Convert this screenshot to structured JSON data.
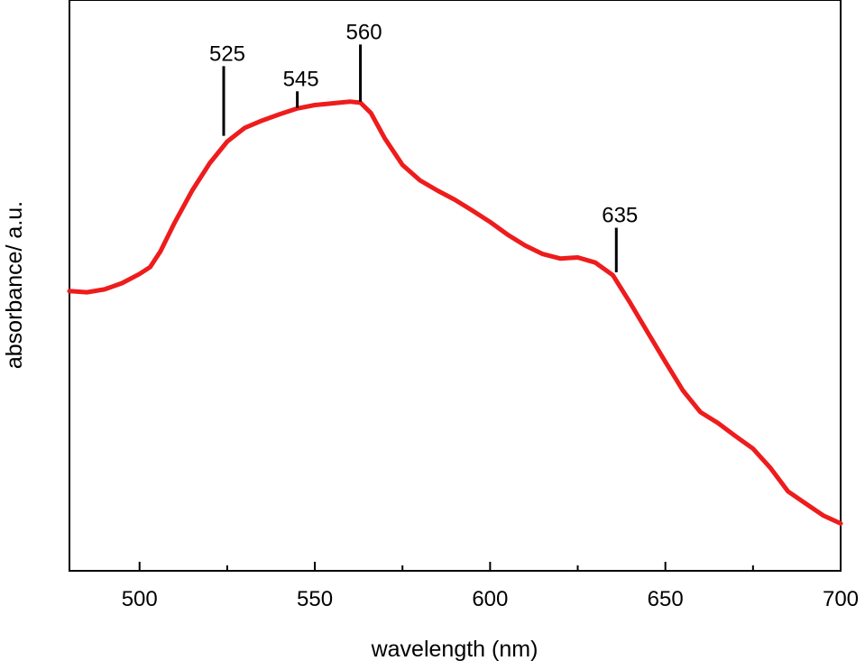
{
  "chart_data": {
    "type": "line",
    "title": "",
    "xlabel": "wavelength (nm)",
    "ylabel": "absorbance/ a.u.",
    "xlim": [
      480,
      700
    ],
    "ylim": [
      0,
      1
    ],
    "x_ticks": [
      500,
      550,
      600,
      650,
      700
    ],
    "y_ticks": [],
    "grid": false,
    "legend": "none",
    "line_color": "#ee1c1c",
    "series": [
      {
        "x": [
          480,
          485,
          490,
          495,
          500,
          503,
          506,
          510,
          515,
          520,
          525,
          530,
          535,
          540,
          545,
          550,
          555,
          560,
          563,
          566,
          570,
          575,
          580,
          585,
          590,
          595,
          600,
          605,
          610,
          615,
          620,
          625,
          630,
          635,
          640,
          645,
          650,
          655,
          660,
          665,
          670,
          675,
          680,
          685,
          690,
          695,
          700
        ],
        "y": [
          0.49,
          0.488,
          0.493,
          0.504,
          0.52,
          0.532,
          0.56,
          0.61,
          0.666,
          0.714,
          0.752,
          0.776,
          0.789,
          0.8,
          0.81,
          0.816,
          0.819,
          0.822,
          0.82,
          0.802,
          0.757,
          0.711,
          0.684,
          0.666,
          0.65,
          0.631,
          0.611,
          0.589,
          0.57,
          0.555,
          0.547,
          0.549,
          0.54,
          0.518,
          0.469,
          0.417,
          0.366,
          0.316,
          0.278,
          0.259,
          0.236,
          0.214,
          0.18,
          0.139,
          0.118,
          0.097,
          0.083
        ]
      }
    ],
    "annotations": [
      {
        "label": "525",
        "x": 524,
        "y_top": 0.884,
        "y_bottom": 0.762
      },
      {
        "label": "545",
        "x": 545,
        "y_top": 0.84,
        "y_bottom": 0.811
      },
      {
        "label": "560",
        "x": 563,
        "y_top": 0.922,
        "y_bottom": 0.822
      },
      {
        "label": "635",
        "x": 636,
        "y_top": 0.601,
        "y_bottom": 0.523
      }
    ]
  }
}
